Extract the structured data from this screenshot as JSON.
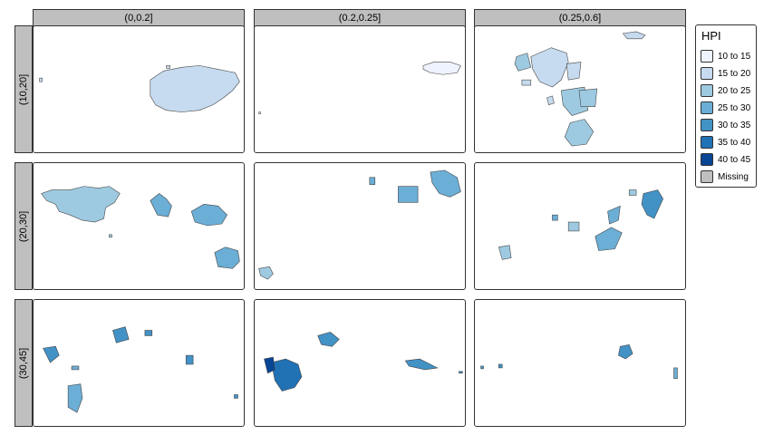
{
  "facets": {
    "columns": [
      "(0,0.2]",
      "(0.2,0.25]",
      "(0.25,0.6]"
    ],
    "rows": [
      "(10,20]",
      "(20,30]",
      "(30,45]"
    ]
  },
  "legend": {
    "title": "HPI",
    "items": [
      {
        "label": "10 to 15",
        "color": "#eff3ff"
      },
      {
        "label": "15 to 20",
        "color": "#c6dbef"
      },
      {
        "label": "20 to 25",
        "color": "#9ecae1"
      },
      {
        "label": "25 to 30",
        "color": "#6baed6"
      },
      {
        "label": "30 to 35",
        "color": "#4292c6"
      },
      {
        "label": "35 to 40",
        "color": "#2171b5"
      },
      {
        "label": "40 to 45",
        "color": "#084594"
      },
      {
        "label": "Missing",
        "color": "#bfbfbf"
      }
    ]
  }
}
